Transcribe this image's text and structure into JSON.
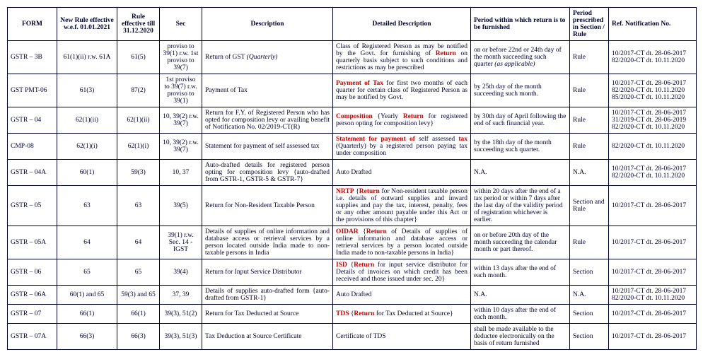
{
  "headers": [
    "FORM",
    "New Rule effective w.e.f. 01.01.2021",
    "Rule effective till 31.12.2020",
    "Sec",
    "Description",
    "Detailed Description",
    "Period within which return is to be furnished",
    "Period prescribed in Section / Rule",
    "Ref. Notification No."
  ],
  "rows": [
    {
      "form": "GSTR – 3B",
      "newRule": "61(1)(ii) r.w. 61A",
      "oldRule": "61(5)",
      "sec": "proviso to 39(1) r.w. 1st proviso to 39(7)",
      "desc": "Return of GST ",
      "descItalic": "(Quarterly)",
      "dd_pre": "Class of Registered Person as may be notified by the Govt. for furnishing of ",
      "dd_red": "Return",
      "dd_post": " on quarterly basis subject to such conditions and restrictions as may be prescribed",
      "period_pre": "on or before 22nd or 24th day of the month succeeding such quarter ",
      "period_italic": "(as applicable)",
      "period_post": "",
      "pres": "Rule",
      "ref": "10/2017-CT dt. 28-06-2017\n82/2020-CT dt. 10.11.2020"
    },
    {
      "form": "GST PMT-06",
      "newRule": "61(3)",
      "oldRule": "87(2)",
      "sec": "1st proviso to 39(7) r.w. proviso to 39(1)",
      "desc": "Payment of Tax",
      "descItalic": "",
      "dd_pre": "",
      "dd_red": "Payment of Tax",
      "dd_post": " for first two months of each quarter for certain class of Registered Person as may be notified by Govt.",
      "period_pre": "by 25th day of the month succeeding such month.",
      "period_italic": "",
      "period_post": "",
      "pres": "Rule",
      "ref": "10/2017-CT dt. 28-06-2017\n82/2020-CT dt. 10.11.2020\n85/2020-CT dt. 10.11.2020"
    },
    {
      "form": "GSTR – 04",
      "newRule": "62(1)(ii)",
      "oldRule": "62(1)(ii)",
      "sec": "10, 39(2) r.w. 39(7)",
      "desc": "Return for F.Y. of Registered Person who has opted for composition levy or availing benefit of Notification No. 02/2019-CT(R)",
      "descItalic": "",
      "dd_pre": "",
      "dd_red": "Composition",
      "dd_mid": " {Yearly ",
      "dd_red2": "Return",
      "dd_post": " for registered person opting for composition levy}",
      "period_pre": "by 30th day of April following the end of such financial year.",
      "period_italic": "",
      "period_post": "",
      "pres": "Rule",
      "ref": "10/2017-CT dt. 28-06-2017\n31/2019-CT dt. 28-06-2019\n82/2020-CT dt. 10.11.2020"
    },
    {
      "form": "CMP-08",
      "newRule": "62(1)(i)",
      "oldRule": "62(1)(i)",
      "sec": "10, 39(2) r.w. 39(7)",
      "desc": "Statement for payment of self assessed tax",
      "descItalic": "",
      "dd_pre": "",
      "dd_red": "Statement for payment of",
      "dd_mid": " self assessed ",
      "dd_red2": "tax",
      "dd_post": " (Quarterly) by a registered person paying tax under composition",
      "period_pre": "by the 18th day of the month succeeding such quarter.",
      "period_italic": "",
      "period_post": "",
      "pres": "Rule",
      "ref": "82/2020-CT dt. 10.11.2020"
    },
    {
      "form": "GSTR – 04A",
      "newRule": "60(1)",
      "oldRule": "59(3)",
      "sec": "10, 37",
      "desc": "Auto-drafted details for registered person opting for composition levy {auto-drafted from GSTR-1, GSTR-5 & GSTR-7}",
      "descItalic": "",
      "dd_pre": "Auto Drafted",
      "dd_red": "",
      "dd_post": "",
      "period_pre": "N.A.",
      "period_italic": "",
      "period_post": "",
      "pres": "N.A.",
      "ref": "10/2017-CT dt. 28-06-2017\n82/2020-CT dt. 10.11.2020"
    },
    {
      "form": "GSTR – 05",
      "newRule": "63",
      "oldRule": "63",
      "sec": "39(5)",
      "desc": "Return for Non-Resident Taxable Person",
      "descItalic": "",
      "dd_pre": "",
      "dd_red": "NRTP",
      "dd_mid": " {",
      "dd_red2": "Return",
      "dd_post": " for Non-resident taxable person i.e. details of outward supplies and inward supplies and pay the tax, interest, penalty, fees or any other amount payable under this Act or the provisions of this chapter}",
      "period_pre": "within 20 days after the end of a tax period or within 7 days after the last day of the validity period of registration whichever is earlier.",
      "period_italic": "",
      "period_post": "",
      "pres": "Section and Rule",
      "ref": "10/2017-CT dt. 28-06-2017"
    },
    {
      "form": "GSTR – 05A",
      "newRule": "64",
      "oldRule": "64",
      "sec": "39(1) r.w. Sec. 14 - IGST",
      "desc": "Details of supplies of online information and database access or retrieval services by a person located outside India made to non-taxable persons in India",
      "descItalic": "",
      "dd_pre": "",
      "dd_red": "OIDAR",
      "dd_mid": " {",
      "dd_red2": "Return",
      "dd_post": " of Details of supplies of online information and database access or retrieval services by a person located outside India made to non-taxable persons in India}",
      "period_pre": "on or before 20th day of the month succeeding the calendar month or part thereof.",
      "period_italic": "",
      "period_post": "",
      "pres": "Rule",
      "ref": "10/2017-CT dt. 28-06-2017"
    },
    {
      "form": "GSTR – 06",
      "newRule": "65",
      "oldRule": "65",
      "sec": "39(4)",
      "desc": "Return for Input Service Distributor",
      "descItalic": "",
      "dd_pre": "",
      "dd_red": "ISD",
      "dd_mid": " {",
      "dd_red2": "Return",
      "dd_post": " for input service distributor for Details of invoices on which credit has been received and those issued under sec. 20}",
      "period_pre": "within 13 days after the end of each month.",
      "period_italic": "",
      "period_post": "",
      "pres": "Section",
      "ref": "10/2017-CT dt. 28-06-2017"
    },
    {
      "form": "GSTR – 06A",
      "newRule": "60(1) and 65",
      "oldRule": "59(3) and 65",
      "sec": "37, 39",
      "desc": "Details of supplies auto-drafted form {auto-drafted from GSTR-1}",
      "descItalic": "",
      "dd_pre": "Auto Drafted",
      "dd_red": "",
      "dd_post": "",
      "period_pre": "N.A.",
      "period_italic": "",
      "period_post": "",
      "pres": "N.A.",
      "ref": "10/2017-CT dt. 28-06-2017\n82/2020-CT dt. 10.11.2020"
    },
    {
      "form": "GSTR – 07",
      "newRule": "66(1)",
      "oldRule": "66(1)",
      "sec": "39(3), 51(2)",
      "desc": "Return for Tax Deducted at Source",
      "descItalic": "",
      "dd_pre": "",
      "dd_red": "TDS",
      "dd_mid": " {",
      "dd_red2": "Return",
      "dd_post": " for Tax Deducted at Source}",
      "period_pre": "within 10 days after the end of each month.",
      "period_italic": "",
      "period_post": "",
      "pres": "Section",
      "ref": "10/2017-CT dt. 28-06-2017"
    },
    {
      "form": "GSTR – 07A",
      "newRule": "66(3)",
      "oldRule": "66(3)",
      "sec": "39(3), 51(3)",
      "desc": "Tax Deduction at Source Certificate",
      "descItalic": "",
      "dd_pre": "Certificate of TDS",
      "dd_red": "",
      "dd_post": "",
      "period_pre": "shall be made available to the deductee electronically on the basis of return furnished",
      "period_italic": "",
      "period_post": "",
      "pres": "Section",
      "ref": "10/2017-CT dt. 28-06-2017"
    }
  ]
}
